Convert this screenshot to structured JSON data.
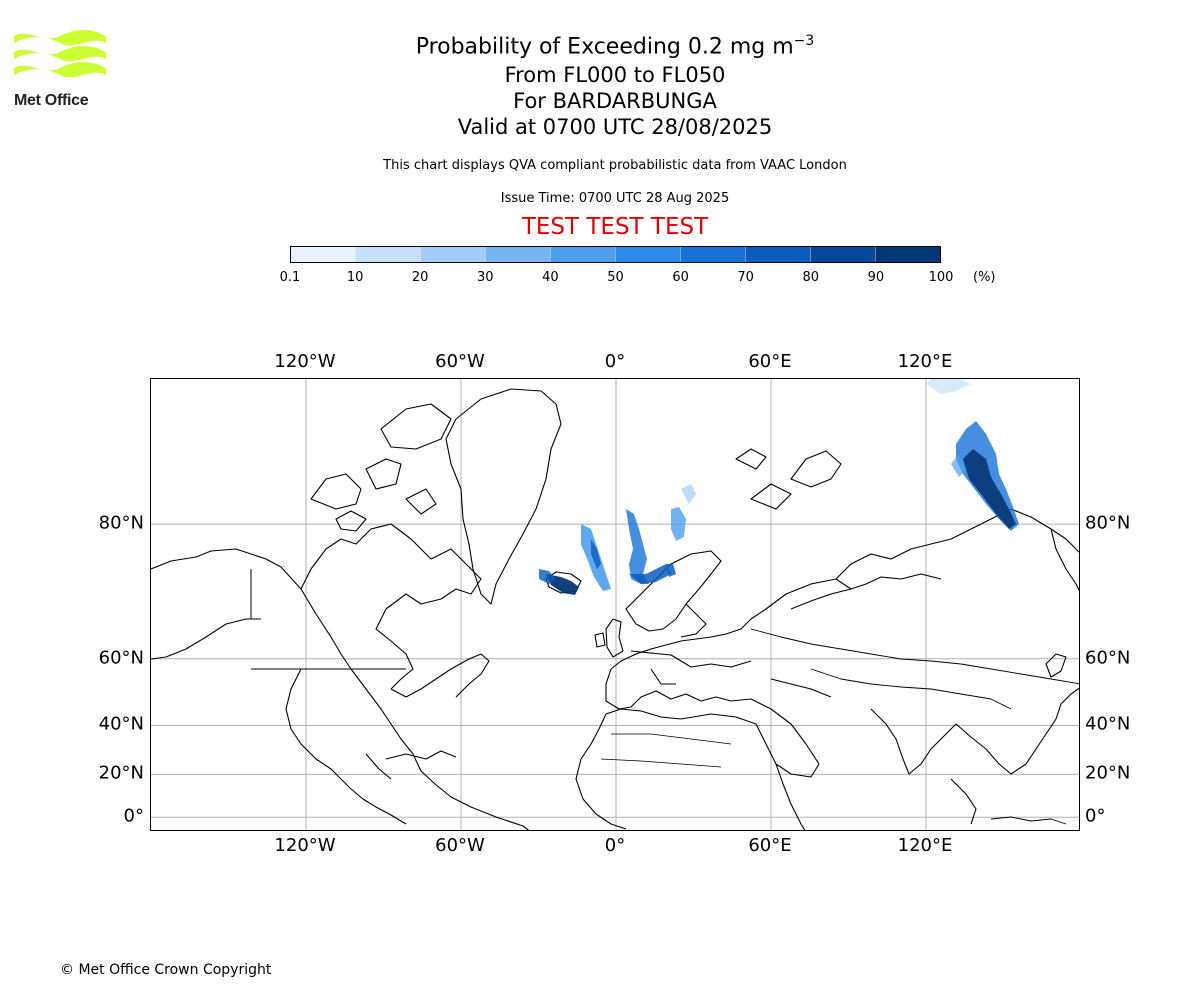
{
  "logo": {
    "text": "Met Office",
    "color": "#ccff33"
  },
  "header": {
    "title_prefix": "Probability of Exceeding 0.2 mg m",
    "title_exponent": "−3",
    "level_range": "From FL000 to FL050",
    "volcano": "For BARDARBUNGA",
    "valid_time": "Valid at 0700 UTC 28/08/2025",
    "disclaimer": "This chart displays QVA compliant probabilistic data from VAAC London",
    "issue_time": "Issue Time: 0700 UTC 28 Aug 2025",
    "test_banner": "TEST TEST TEST"
  },
  "colorbar": {
    "ticks": [
      "0.1",
      "10",
      "20",
      "30",
      "40",
      "50",
      "60",
      "70",
      "80",
      "90",
      "100"
    ],
    "unit": "(%)",
    "colors": [
      "#e8f3fe",
      "#c6e1fb",
      "#a1cdf8",
      "#78b6f3",
      "#4d9fee",
      "#2a8aea",
      "#1672d8",
      "#0b5cbd",
      "#07489a",
      "#043675"
    ]
  },
  "map": {
    "lon_labels": [
      "120°W",
      "60°W",
      "0°",
      "60°E",
      "120°E"
    ],
    "lat_labels": [
      "80°N",
      "60°N",
      "40°N",
      "20°N",
      "0°"
    ],
    "lon_values": [
      -120,
      -60,
      0,
      60,
      120
    ],
    "lat_values": [
      80,
      60,
      40,
      20,
      0
    ],
    "lon_range": [
      -180,
      180
    ],
    "lat_range": [
      -7,
      87
    ],
    "gridline_color": "#b0b0b0"
  },
  "footer": {
    "copyright": "© Met Office Crown Copyright"
  }
}
